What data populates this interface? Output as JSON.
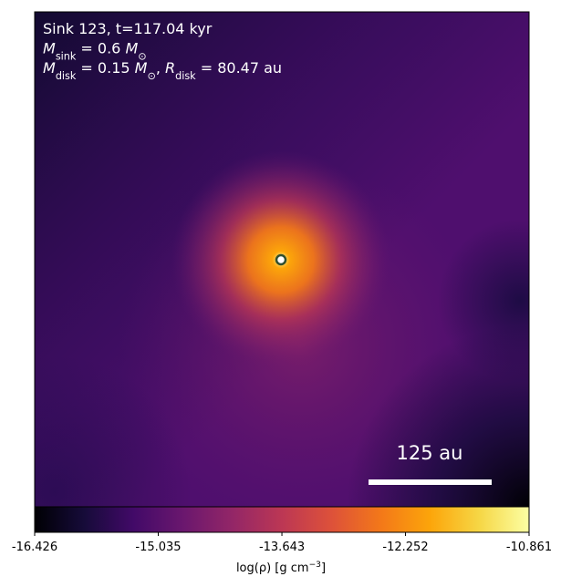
{
  "chart_data": {
    "type": "heatmap",
    "annotations": [
      [
        {
          "text": "Sink 123, t=117.04 kyr"
        }
      ],
      [
        {
          "text": "M",
          "italic": true
        },
        {
          "text": "sink",
          "sub": true
        },
        {
          "text": " = 0.6 "
        },
        {
          "text": "M",
          "italic": true
        },
        {
          "text": "⊙",
          "sub": true
        }
      ],
      [
        {
          "text": "M",
          "italic": true
        },
        {
          "text": "disk",
          "sub": true
        },
        {
          "text": " = 0.15 "
        },
        {
          "text": "M",
          "italic": true
        },
        {
          "text": "⊙",
          "sub": true
        },
        {
          "text": ", "
        },
        {
          "text": "R",
          "italic": true
        },
        {
          "text": "disk",
          "sub": true
        },
        {
          "text": " = 80.47 au"
        }
      ]
    ],
    "scale_bar": "125 au",
    "colormap": "inferno",
    "colorbar": {
      "label": [
        {
          "text": "log(ρ) [g cm"
        },
        {
          "text": "−3",
          "sup": true
        },
        {
          "text": "]"
        }
      ],
      "lim": [
        -16.426,
        -10.861
      ],
      "ticks": [
        -16.426,
        -15.035,
        -13.643,
        -12.252,
        -10.861
      ]
    }
  }
}
